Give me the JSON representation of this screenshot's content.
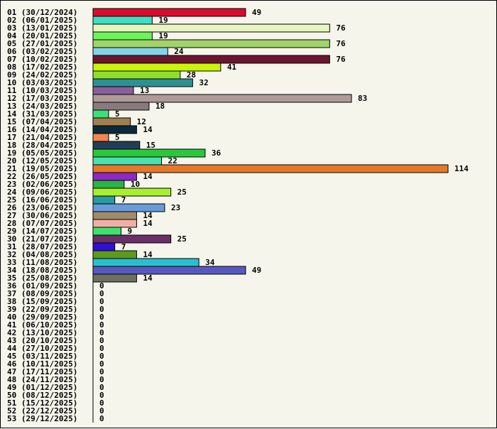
{
  "chart_data": {
    "type": "bar",
    "orientation": "horizontal",
    "title": "",
    "xlabel": "",
    "ylabel": "",
    "xlim": [
      0,
      114
    ],
    "grid": false,
    "legend": "none",
    "background": "#f5f5eb",
    "categories": [
      "01 (30/12/2024)",
      "02 (06/01/2025)",
      "03 (13/01/2025)",
      "04 (20/01/2025)",
      "05 (27/01/2025)",
      "06 (03/02/2025)",
      "07 (10/02/2025)",
      "08 (17/02/2025)",
      "09 (24/02/2025)",
      "10 (03/03/2025)",
      "11 (10/03/2025)",
      "12 (17/03/2025)",
      "13 (24/03/2025)",
      "14 (31/03/2025)",
      "15 (07/04/2025)",
      "16 (14/04/2025)",
      "17 (21/04/2025)",
      "18 (28/04/2025)",
      "19 (05/05/2025)",
      "20 (12/05/2025)",
      "21 (19/05/2025)",
      "22 (26/05/2025)",
      "23 (02/06/2025)",
      "24 (09/06/2025)",
      "25 (16/06/2025)",
      "26 (23/06/2025)",
      "27 (30/06/2025)",
      "28 (07/07/2025)",
      "29 (14/07/2025)",
      "30 (21/07/2025)",
      "31 (28/07/2025)",
      "32 (04/08/2025)",
      "33 (11/08/2025)",
      "34 (18/08/2025)",
      "35 (25/08/2025)",
      "36 (01/09/2025)",
      "37 (08/09/2025)",
      "38 (15/09/2025)",
      "39 (22/09/2025)",
      "40 (29/09/2025)",
      "41 (06/10/2025)",
      "42 (13/10/2025)",
      "43 (20/10/2025)",
      "44 (27/10/2025)",
      "45 (03/11/2025)",
      "46 (10/11/2025)",
      "47 (17/11/2025)",
      "48 (24/11/2025)",
      "49 (01/12/2025)",
      "50 (08/12/2025)",
      "51 (15/12/2025)",
      "52 (22/12/2025)",
      "53 (29/12/2025)"
    ],
    "values": [
      49,
      19,
      76,
      19,
      76,
      24,
      76,
      41,
      28,
      32,
      13,
      83,
      18,
      5,
      12,
      14,
      5,
      15,
      36,
      22,
      114,
      14,
      10,
      25,
      7,
      23,
      14,
      14,
      9,
      25,
      7,
      14,
      34,
      49,
      14,
      0,
      0,
      0,
      0,
      0,
      0,
      0,
      0,
      0,
      0,
      0,
      0,
      0,
      0,
      0,
      0,
      0,
      0
    ],
    "colors": [
      "#dc0a2d",
      "#3de0c4",
      "#e8f5c0",
      "#6cf45c",
      "#a0d46a",
      "#86d3e8",
      "#6b1630",
      "#c8f50a",
      "#8fe02c",
      "#2e9096",
      "#8a5f9b",
      "#b09a98",
      "#8a7a7c",
      "#3ce07a",
      "#a08050",
      "#0c2a3a",
      "#f08850",
      "#243c58",
      "#2cc83c",
      "#4ae0b0",
      "#e87828",
      "#9028c8",
      "#28b448",
      "#a8f02c",
      "#2a9aa0",
      "#6a9ad8",
      "#a08c6a",
      "#f0b0a8",
      "#40e070",
      "#6c2e68",
      "#3010d8",
      "#5c9a1c",
      "#28c0d0",
      "#5858c0",
      "#6c7060",
      "#cccccc",
      "#cccccc",
      "#cccccc",
      "#cccccc",
      "#cccccc",
      "#cccccc",
      "#cccccc",
      "#cccccc",
      "#cccccc",
      "#cccccc",
      "#cccccc",
      "#cccccc",
      "#cccccc",
      "#cccccc",
      "#cccccc",
      "#cccccc",
      "#cccccc",
      "#cccccc"
    ]
  }
}
